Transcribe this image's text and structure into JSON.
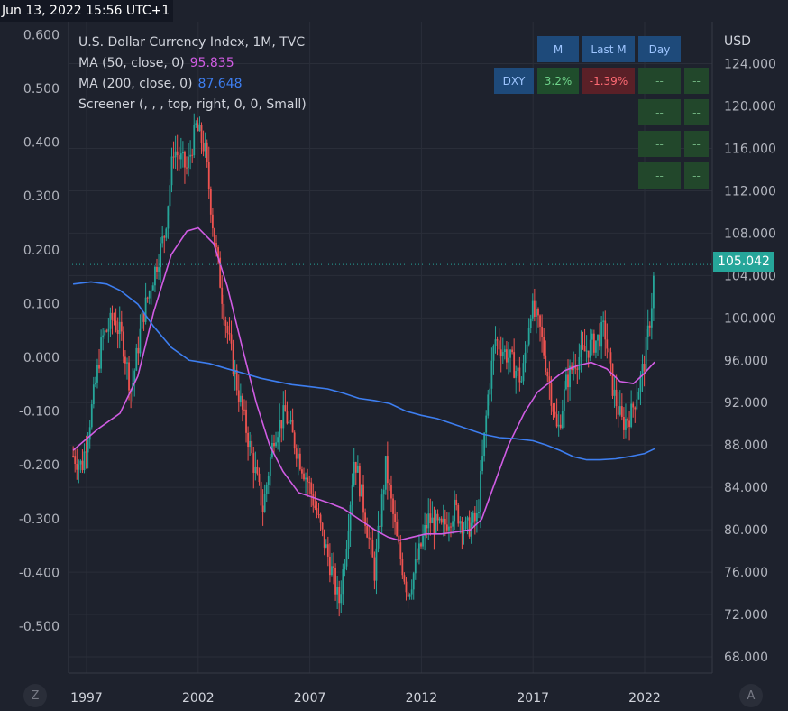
{
  "timestamp": "Jun 13, 2022 15:56 UTC+1",
  "legend": {
    "symbol_line": "U.S. Dollar Currency Index, 1M, TVC",
    "ma50_label": "MA (50, close, 0)",
    "ma50_value": "95.835",
    "ma200_label": "MA (200, close, 0)",
    "ma200_value": "87.648",
    "screener_label": "Screener (, , , top, right, 0, 0, Small)"
  },
  "screener": {
    "headers": [
      "M",
      "Last M",
      "Day"
    ],
    "symbol": "DXY",
    "m_value": "3.2%",
    "last_m_value": "-1.39%",
    "empty": "--"
  },
  "axis": {
    "right_unit": "USD",
    "current_price": "105.042"
  },
  "buttons": {
    "left_round": "Z",
    "right_round": "A"
  },
  "colors": {
    "background": "#1e222d",
    "up": "#26a69a",
    "down": "#ef5350",
    "ma50": "#d05ce3",
    "ma200": "#3d7ef0",
    "grid": "#2a2e39"
  },
  "chart_data": {
    "type": "candlestick",
    "title": "U.S. Dollar Currency Index, 1M, TVC",
    "timeframe": "1M",
    "x_ticks": [
      "1997",
      "2002",
      "2007",
      "2012",
      "2017",
      "2022"
    ],
    "y_right": {
      "unit": "USD",
      "range": [
        66.0,
        126.0
      ],
      "ticks": [
        "124.000",
        "120.000",
        "116.000",
        "112.000",
        "108.000",
        "104.000",
        "100.000",
        "96.000",
        "92.000",
        "88.000",
        "84.000",
        "80.000",
        "76.000",
        "72.000",
        "68.000"
      ]
    },
    "y_left": {
      "scale": "log-change",
      "ticks": [
        "0.600",
        "0.500",
        "0.400",
        "0.300",
        "0.200",
        "0.100",
        "0.000",
        "-0.100",
        "-0.200",
        "-0.300",
        "-0.400",
        "-0.500"
      ]
    },
    "grid": true,
    "current_price": 105.042,
    "price_path": [
      [
        1996.4,
        87
      ],
      [
        1996.8,
        86
      ],
      [
        1997.2,
        91
      ],
      [
        1997.7,
        98
      ],
      [
        1998.2,
        100
      ],
      [
        1998.6,
        98
      ],
      [
        1999.0,
        93
      ],
      [
        1999.5,
        100
      ],
      [
        2000.0,
        104
      ],
      [
        2000.5,
        108
      ],
      [
        2000.9,
        116
      ],
      [
        2001.5,
        114
      ],
      [
        2001.9,
        118
      ],
      [
        2002.3,
        116
      ],
      [
        2002.7,
        108
      ],
      [
        2003.2,
        100
      ],
      [
        2003.7,
        94
      ],
      [
        2004.2,
        89
      ],
      [
        2004.9,
        82
      ],
      [
        2005.4,
        89
      ],
      [
        2005.9,
        91
      ],
      [
        2006.5,
        87
      ],
      [
        2007.0,
        84
      ],
      [
        2007.5,
        80
      ],
      [
        2008.0,
        76
      ],
      [
        2008.3,
        73
      ],
      [
        2008.6,
        78
      ],
      [
        2009.0,
        87
      ],
      [
        2009.5,
        81
      ],
      [
        2009.9,
        76
      ],
      [
        2010.4,
        86
      ],
      [
        2010.9,
        79
      ],
      [
        2011.4,
        74
      ],
      [
        2011.8,
        77
      ],
      [
        2012.3,
        81
      ],
      [
        2012.9,
        80
      ],
      [
        2013.5,
        82
      ],
      [
        2014.0,
        80
      ],
      [
        2014.5,
        81
      ],
      [
        2015.0,
        93
      ],
      [
        2015.3,
        98
      ],
      [
        2016.0,
        96
      ],
      [
        2016.5,
        94
      ],
      [
        2016.9,
        101
      ],
      [
        2017.3,
        99
      ],
      [
        2017.8,
        93
      ],
      [
        2018.1,
        89
      ],
      [
        2018.5,
        94
      ],
      [
        2018.9,
        96
      ],
      [
        2019.4,
        97
      ],
      [
        2019.9,
        98
      ],
      [
        2020.2,
        99
      ],
      [
        2020.6,
        93
      ],
      [
        2021.0,
        90
      ],
      [
        2021.4,
        91
      ],
      [
        2021.8,
        94
      ],
      [
        2022.0,
        96
      ],
      [
        2022.3,
        101
      ],
      [
        2022.45,
        105.04
      ]
    ],
    "series": [
      {
        "name": "MA (50, close, 0)",
        "color": "#d05ce3",
        "points": [
          [
            1996.4,
            87.5
          ],
          [
            1997.5,
            89.5
          ],
          [
            1998.5,
            91.0
          ],
          [
            1999.3,
            94.5
          ],
          [
            2000.0,
            100.5
          ],
          [
            2000.8,
            106.0
          ],
          [
            2001.5,
            108.2
          ],
          [
            2002.0,
            108.5
          ],
          [
            2002.7,
            107.0
          ],
          [
            2003.3,
            103.0
          ],
          [
            2004.0,
            97.0
          ],
          [
            2004.6,
            92.0
          ],
          [
            2005.2,
            88.0
          ],
          [
            2005.8,
            85.5
          ],
          [
            2006.5,
            83.5
          ],
          [
            2007.2,
            83.0
          ],
          [
            2007.9,
            82.5
          ],
          [
            2008.5,
            82.0
          ],
          [
            2009.2,
            81.0
          ],
          [
            2009.9,
            80.0
          ],
          [
            2010.5,
            79.3
          ],
          [
            2011.0,
            79.0
          ],
          [
            2011.6,
            79.3
          ],
          [
            2012.2,
            79.6
          ],
          [
            2012.9,
            79.6
          ],
          [
            2013.6,
            79.8
          ],
          [
            2014.2,
            80.0
          ],
          [
            2014.7,
            81.0
          ],
          [
            2015.3,
            84.5
          ],
          [
            2015.9,
            88.0
          ],
          [
            2016.6,
            91.0
          ],
          [
            2017.2,
            93.0
          ],
          [
            2017.8,
            94.0
          ],
          [
            2018.4,
            95.0
          ],
          [
            2019.0,
            95.5
          ],
          [
            2019.6,
            95.8
          ],
          [
            2020.3,
            95.2
          ],
          [
            2020.9,
            94.0
          ],
          [
            2021.5,
            93.8
          ],
          [
            2022.0,
            94.8
          ],
          [
            2022.45,
            95.835
          ]
        ]
      },
      {
        "name": "MA (200, close, 0)",
        "color": "#3d7ef0",
        "points": [
          [
            1996.4,
            103.2
          ],
          [
            1997.2,
            103.4
          ],
          [
            1997.9,
            103.2
          ],
          [
            1998.5,
            102.6
          ],
          [
            1999.3,
            101.3
          ],
          [
            2000.0,
            99.2
          ],
          [
            2000.8,
            97.2
          ],
          [
            2001.6,
            96.0
          ],
          [
            2002.5,
            95.7
          ],
          [
            2003.3,
            95.2
          ],
          [
            2004.0,
            94.8
          ],
          [
            2004.8,
            94.3
          ],
          [
            2005.5,
            94.0
          ],
          [
            2006.2,
            93.7
          ],
          [
            2007.0,
            93.5
          ],
          [
            2007.8,
            93.3
          ],
          [
            2008.5,
            92.9
          ],
          [
            2009.2,
            92.4
          ],
          [
            2009.9,
            92.2
          ],
          [
            2010.6,
            91.9
          ],
          [
            2011.3,
            91.2
          ],
          [
            2012.0,
            90.8
          ],
          [
            2012.7,
            90.5
          ],
          [
            2013.4,
            90.0
          ],
          [
            2014.1,
            89.5
          ],
          [
            2014.8,
            89.0
          ],
          [
            2015.5,
            88.7
          ],
          [
            2016.2,
            88.6
          ],
          [
            2017.0,
            88.4
          ],
          [
            2017.6,
            88.0
          ],
          [
            2018.2,
            87.5
          ],
          [
            2018.8,
            86.9
          ],
          [
            2019.4,
            86.6
          ],
          [
            2020.0,
            86.6
          ],
          [
            2020.7,
            86.7
          ],
          [
            2021.3,
            86.9
          ],
          [
            2022.0,
            87.2
          ],
          [
            2022.45,
            87.648
          ]
        ]
      }
    ]
  }
}
